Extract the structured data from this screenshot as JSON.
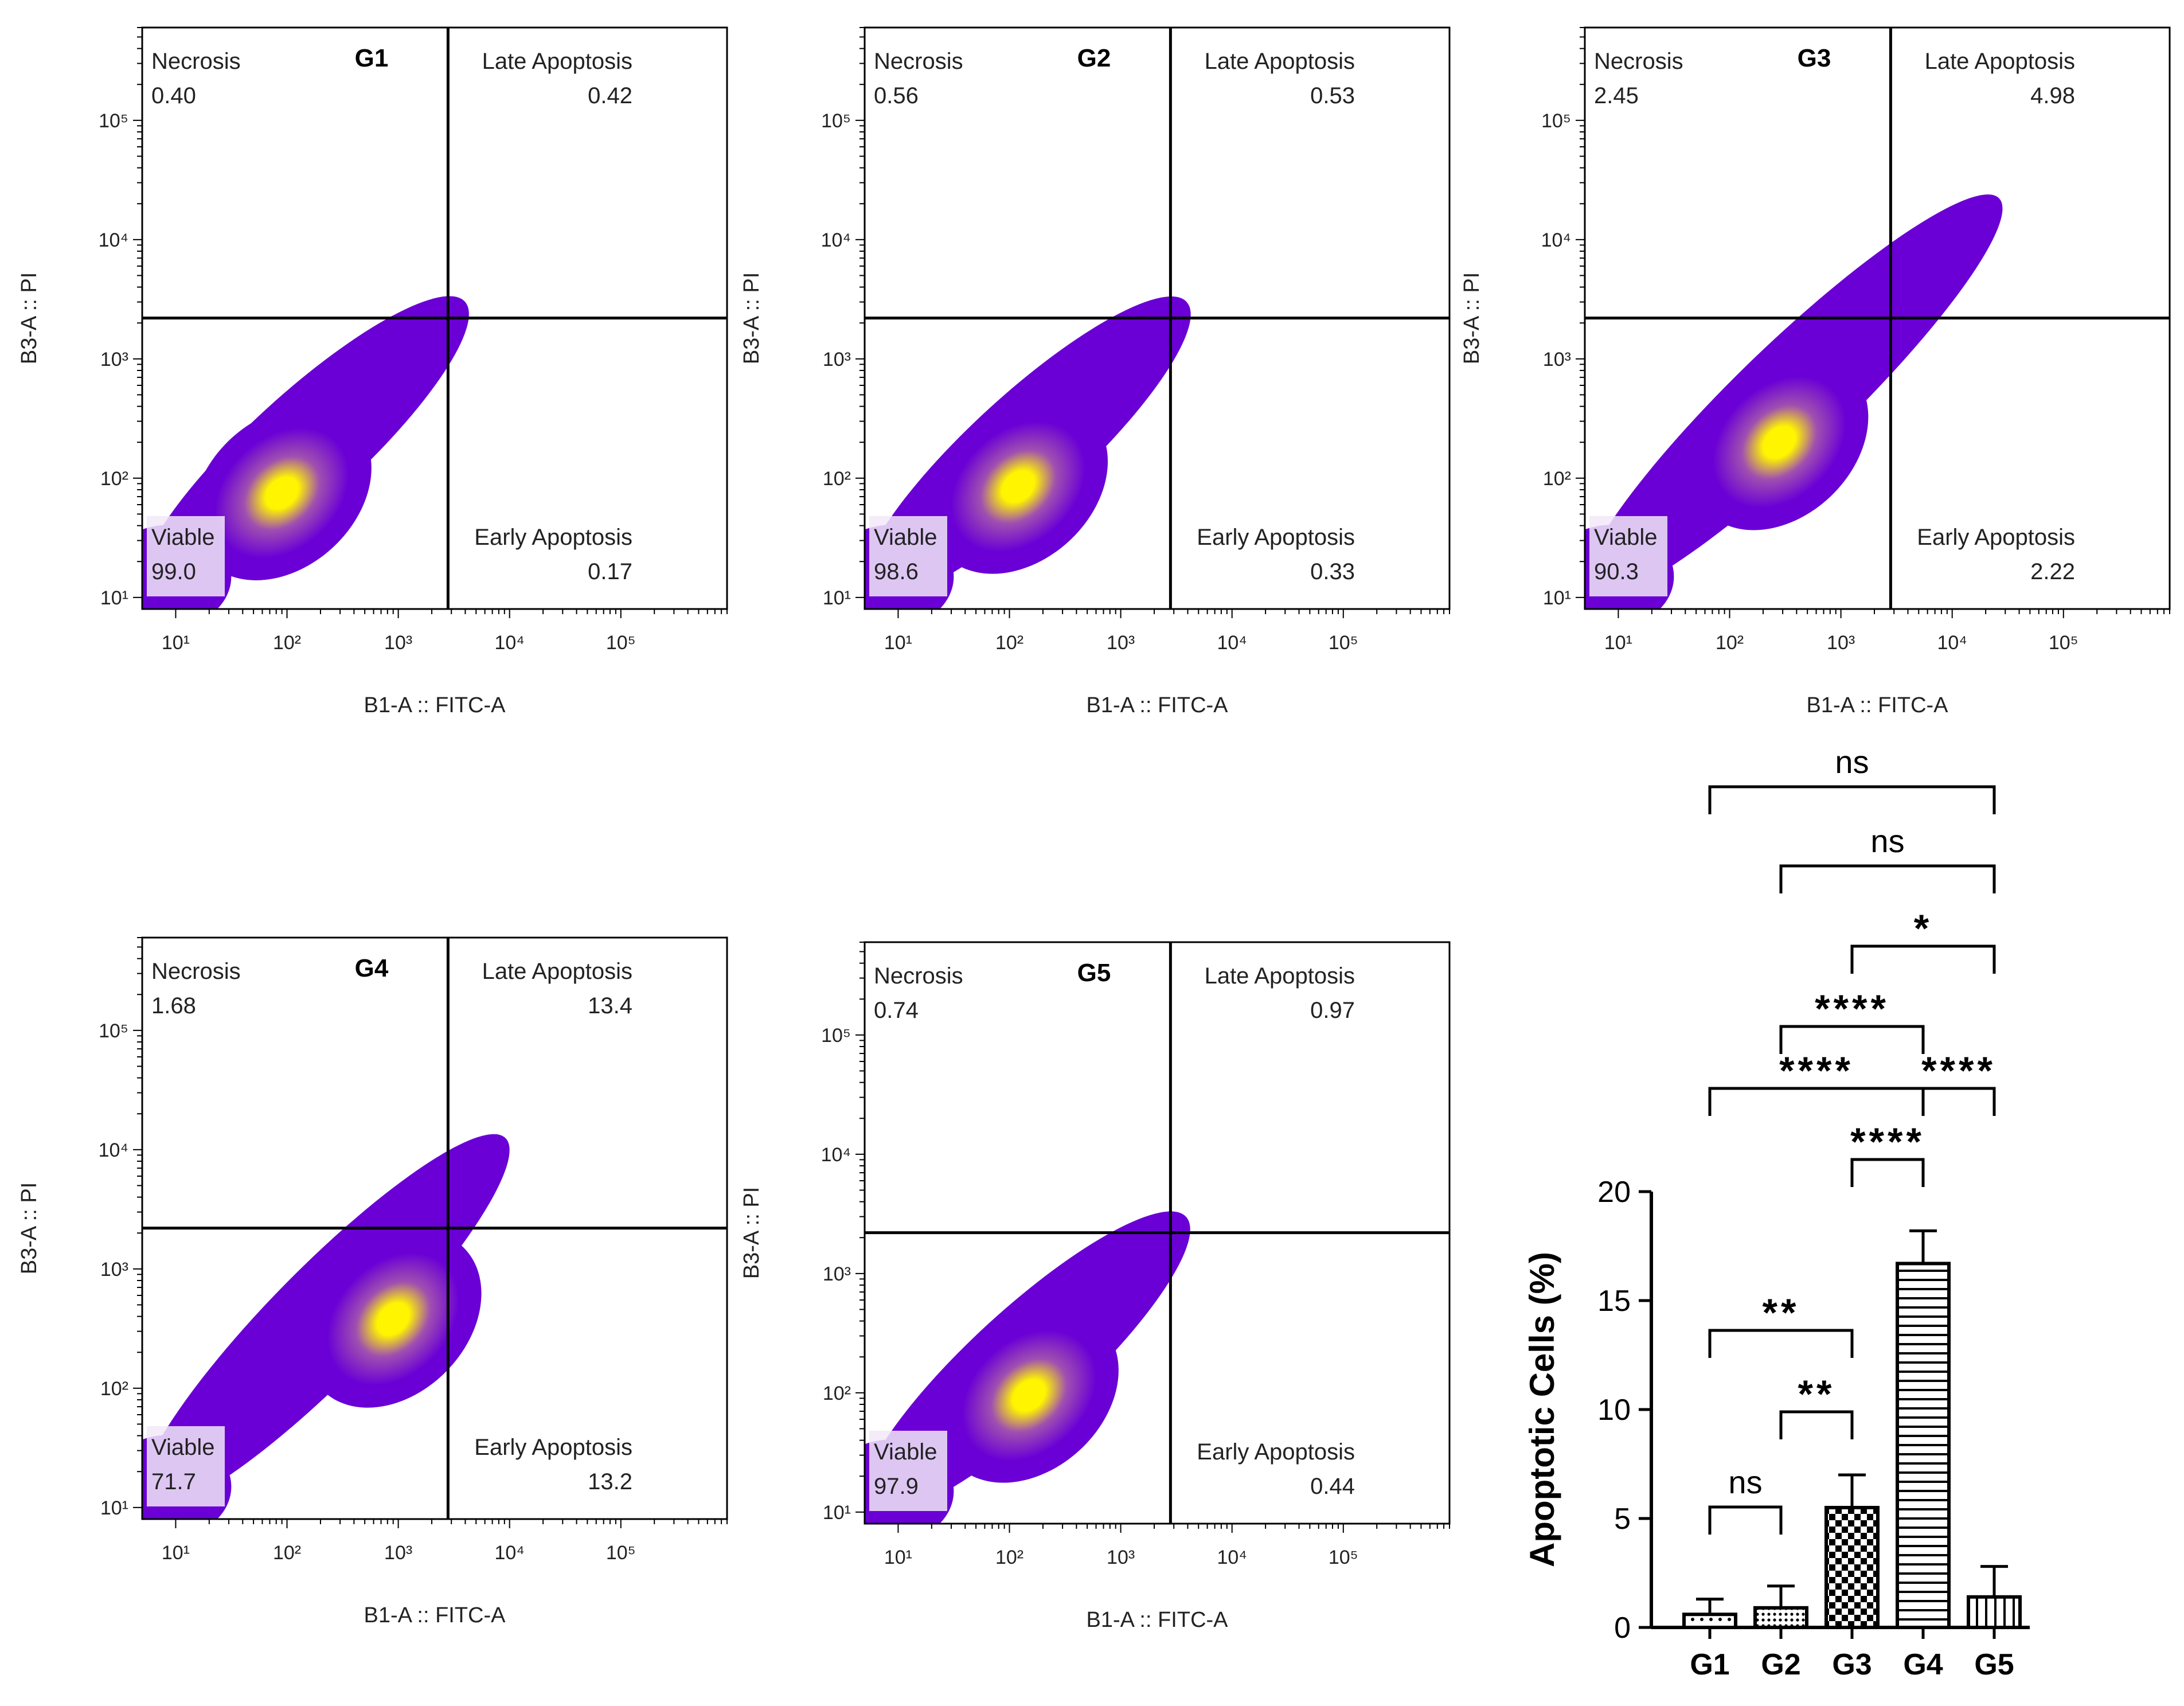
{
  "colors": {
    "axis": "#000000",
    "density_low": "#6a00d6",
    "density_mid": "#a050b0",
    "density_high": "#fff500",
    "label_box": "#f2e9f8"
  },
  "chart_data": [
    {
      "type": "scatter",
      "title": "G1",
      "xlabel": "B1-A :: FITC-A",
      "ylabel": "B3-A :: PI",
      "axis_scale": "log",
      "xlim": [
        5,
        900000
      ],
      "ylim": [
        8,
        600000
      ],
      "x_ticks": [
        "10¹",
        "10²",
        "10³",
        "10⁴",
        "10⁵"
      ],
      "y_ticks": [
        "10¹",
        "10²",
        "10³",
        "10⁴",
        "10⁵"
      ],
      "gate": {
        "x": 2800,
        "y": 2200
      },
      "density_peak": [
        90,
        75
      ],
      "quadrants": {
        "necrosis": {
          "label": "Necrosis",
          "value": "0.40"
        },
        "late_apoptosis": {
          "label": "Late Apoptosis",
          "value": "0.42"
        },
        "viable": {
          "label": "Viable",
          "value": "99.0"
        },
        "early_apoptosis": {
          "label": "Early Apoptosis",
          "value": "0.17"
        }
      }
    },
    {
      "type": "scatter",
      "title": "G2",
      "xlabel": "B1-A :: FITC-A",
      "ylabel": "B3-A :: PI",
      "axis_scale": "log",
      "xlim": [
        5,
        900000
      ],
      "ylim": [
        8,
        600000
      ],
      "x_ticks": [
        "10¹",
        "10²",
        "10³",
        "10⁴",
        "10⁵"
      ],
      "y_ticks": [
        "10¹",
        "10²",
        "10³",
        "10⁴",
        "10⁵"
      ],
      "gate": {
        "x": 2800,
        "y": 2200
      },
      "density_peak": [
        120,
        85
      ],
      "quadrants": {
        "necrosis": {
          "label": "Necrosis",
          "value": "0.56"
        },
        "late_apoptosis": {
          "label": "Late Apoptosis",
          "value": "0.53"
        },
        "viable": {
          "label": "Viable",
          "value": "98.6"
        },
        "early_apoptosis": {
          "label": "Early Apoptosis",
          "value": "0.33"
        }
      }
    },
    {
      "type": "scatter",
      "title": "G3",
      "xlabel": "B1-A :: FITC-A",
      "ylabel": "B3-A :: PI",
      "axis_scale": "log",
      "xlim": [
        5,
        900000
      ],
      "ylim": [
        8,
        600000
      ],
      "x_ticks": [
        "10¹",
        "10²",
        "10³",
        "10⁴",
        "10⁵"
      ],
      "y_ticks": [
        "10¹",
        "10²",
        "10³",
        "10⁴",
        "10⁵"
      ],
      "gate": {
        "x": 2800,
        "y": 2200
      },
      "density_peak": [
        280,
        200
      ],
      "quadrants": {
        "necrosis": {
          "label": "Necrosis",
          "value": "2.45"
        },
        "late_apoptosis": {
          "label": "Late Apoptosis",
          "value": "4.98"
        },
        "viable": {
          "label": "Viable",
          "value": "90.3"
        },
        "early_apoptosis": {
          "label": "Early Apoptosis",
          "value": "2.22"
        }
      }
    },
    {
      "type": "scatter",
      "title": "G4",
      "xlabel": "B1-A :: FITC-A",
      "ylabel": "B3-A :: PI",
      "axis_scale": "log",
      "xlim": [
        5,
        900000
      ],
      "ylim": [
        8,
        600000
      ],
      "x_ticks": [
        "10¹",
        "10²",
        "10³",
        "10⁴",
        "10⁵"
      ],
      "y_ticks": [
        "10¹",
        "10²",
        "10³",
        "10⁴",
        "10⁵"
      ],
      "gate": {
        "x": 2800,
        "y": 2200
      },
      "density_peak": [
        900,
        380
      ],
      "quadrants": {
        "necrosis": {
          "label": "Necrosis",
          "value": "1.68"
        },
        "late_apoptosis": {
          "label": "Late Apoptosis",
          "value": "13.4"
        },
        "viable": {
          "label": "Viable",
          "value": "71.7"
        },
        "early_apoptosis": {
          "label": "Early Apoptosis",
          "value": "13.2"
        }
      }
    },
    {
      "type": "scatter",
      "title": "G5",
      "xlabel": "B1-A :: FITC-A",
      "ylabel": "B3-A :: PI",
      "axis_scale": "log",
      "xlim": [
        5,
        900000
      ],
      "ylim": [
        8,
        600000
      ],
      "x_ticks": [
        "10¹",
        "10²",
        "10³",
        "10⁴",
        "10⁵"
      ],
      "y_ticks": [
        "10¹",
        "10²",
        "10³",
        "10⁴",
        "10⁵"
      ],
      "gate": {
        "x": 2800,
        "y": 2200
      },
      "density_peak": [
        150,
        95
      ],
      "quadrants": {
        "necrosis": {
          "label": "Necrosis",
          "value": "0.74"
        },
        "late_apoptosis": {
          "label": "Late Apoptosis",
          "value": "0.97"
        },
        "viable": {
          "label": "Viable",
          "value": "97.9"
        },
        "early_apoptosis": {
          "label": "Early Apoptosis",
          "value": "0.44"
        }
      }
    },
    {
      "type": "bar",
      "title": "",
      "xlabel": "",
      "ylabel": "Apoptotic Cells (%)",
      "ylim": [
        0,
        20
      ],
      "y_ticks": [
        0,
        5,
        10,
        15,
        20
      ],
      "categories": [
        "G1",
        "G2",
        "G3",
        "G4",
        "G5"
      ],
      "values": [
        0.6,
        0.9,
        5.5,
        16.7,
        1.4
      ],
      "errors": [
        0.7,
        1.0,
        1.5,
        1.5,
        1.4
      ],
      "patterns": [
        "dots-sparse",
        "dots-dense",
        "checker",
        "hlines",
        "vlines"
      ],
      "significance": [
        {
          "from": "G1",
          "to": "G2",
          "label": "ns"
        },
        {
          "from": "G2",
          "to": "G3",
          "label": "**"
        },
        {
          "from": "G1",
          "to": "G3",
          "label": "**"
        },
        {
          "from": "G3",
          "to": "G4",
          "label": "****"
        },
        {
          "from": "G4",
          "to": "G5",
          "label": "****"
        },
        {
          "from": "G1",
          "to": "G4",
          "label": "****"
        },
        {
          "from": "G2",
          "to": "G4",
          "label": "****"
        },
        {
          "from": "G3",
          "to": "G5",
          "label": "*"
        },
        {
          "from": "G2",
          "to": "G5",
          "label": "ns"
        },
        {
          "from": "G1",
          "to": "G5",
          "label": "ns"
        }
      ]
    }
  ]
}
